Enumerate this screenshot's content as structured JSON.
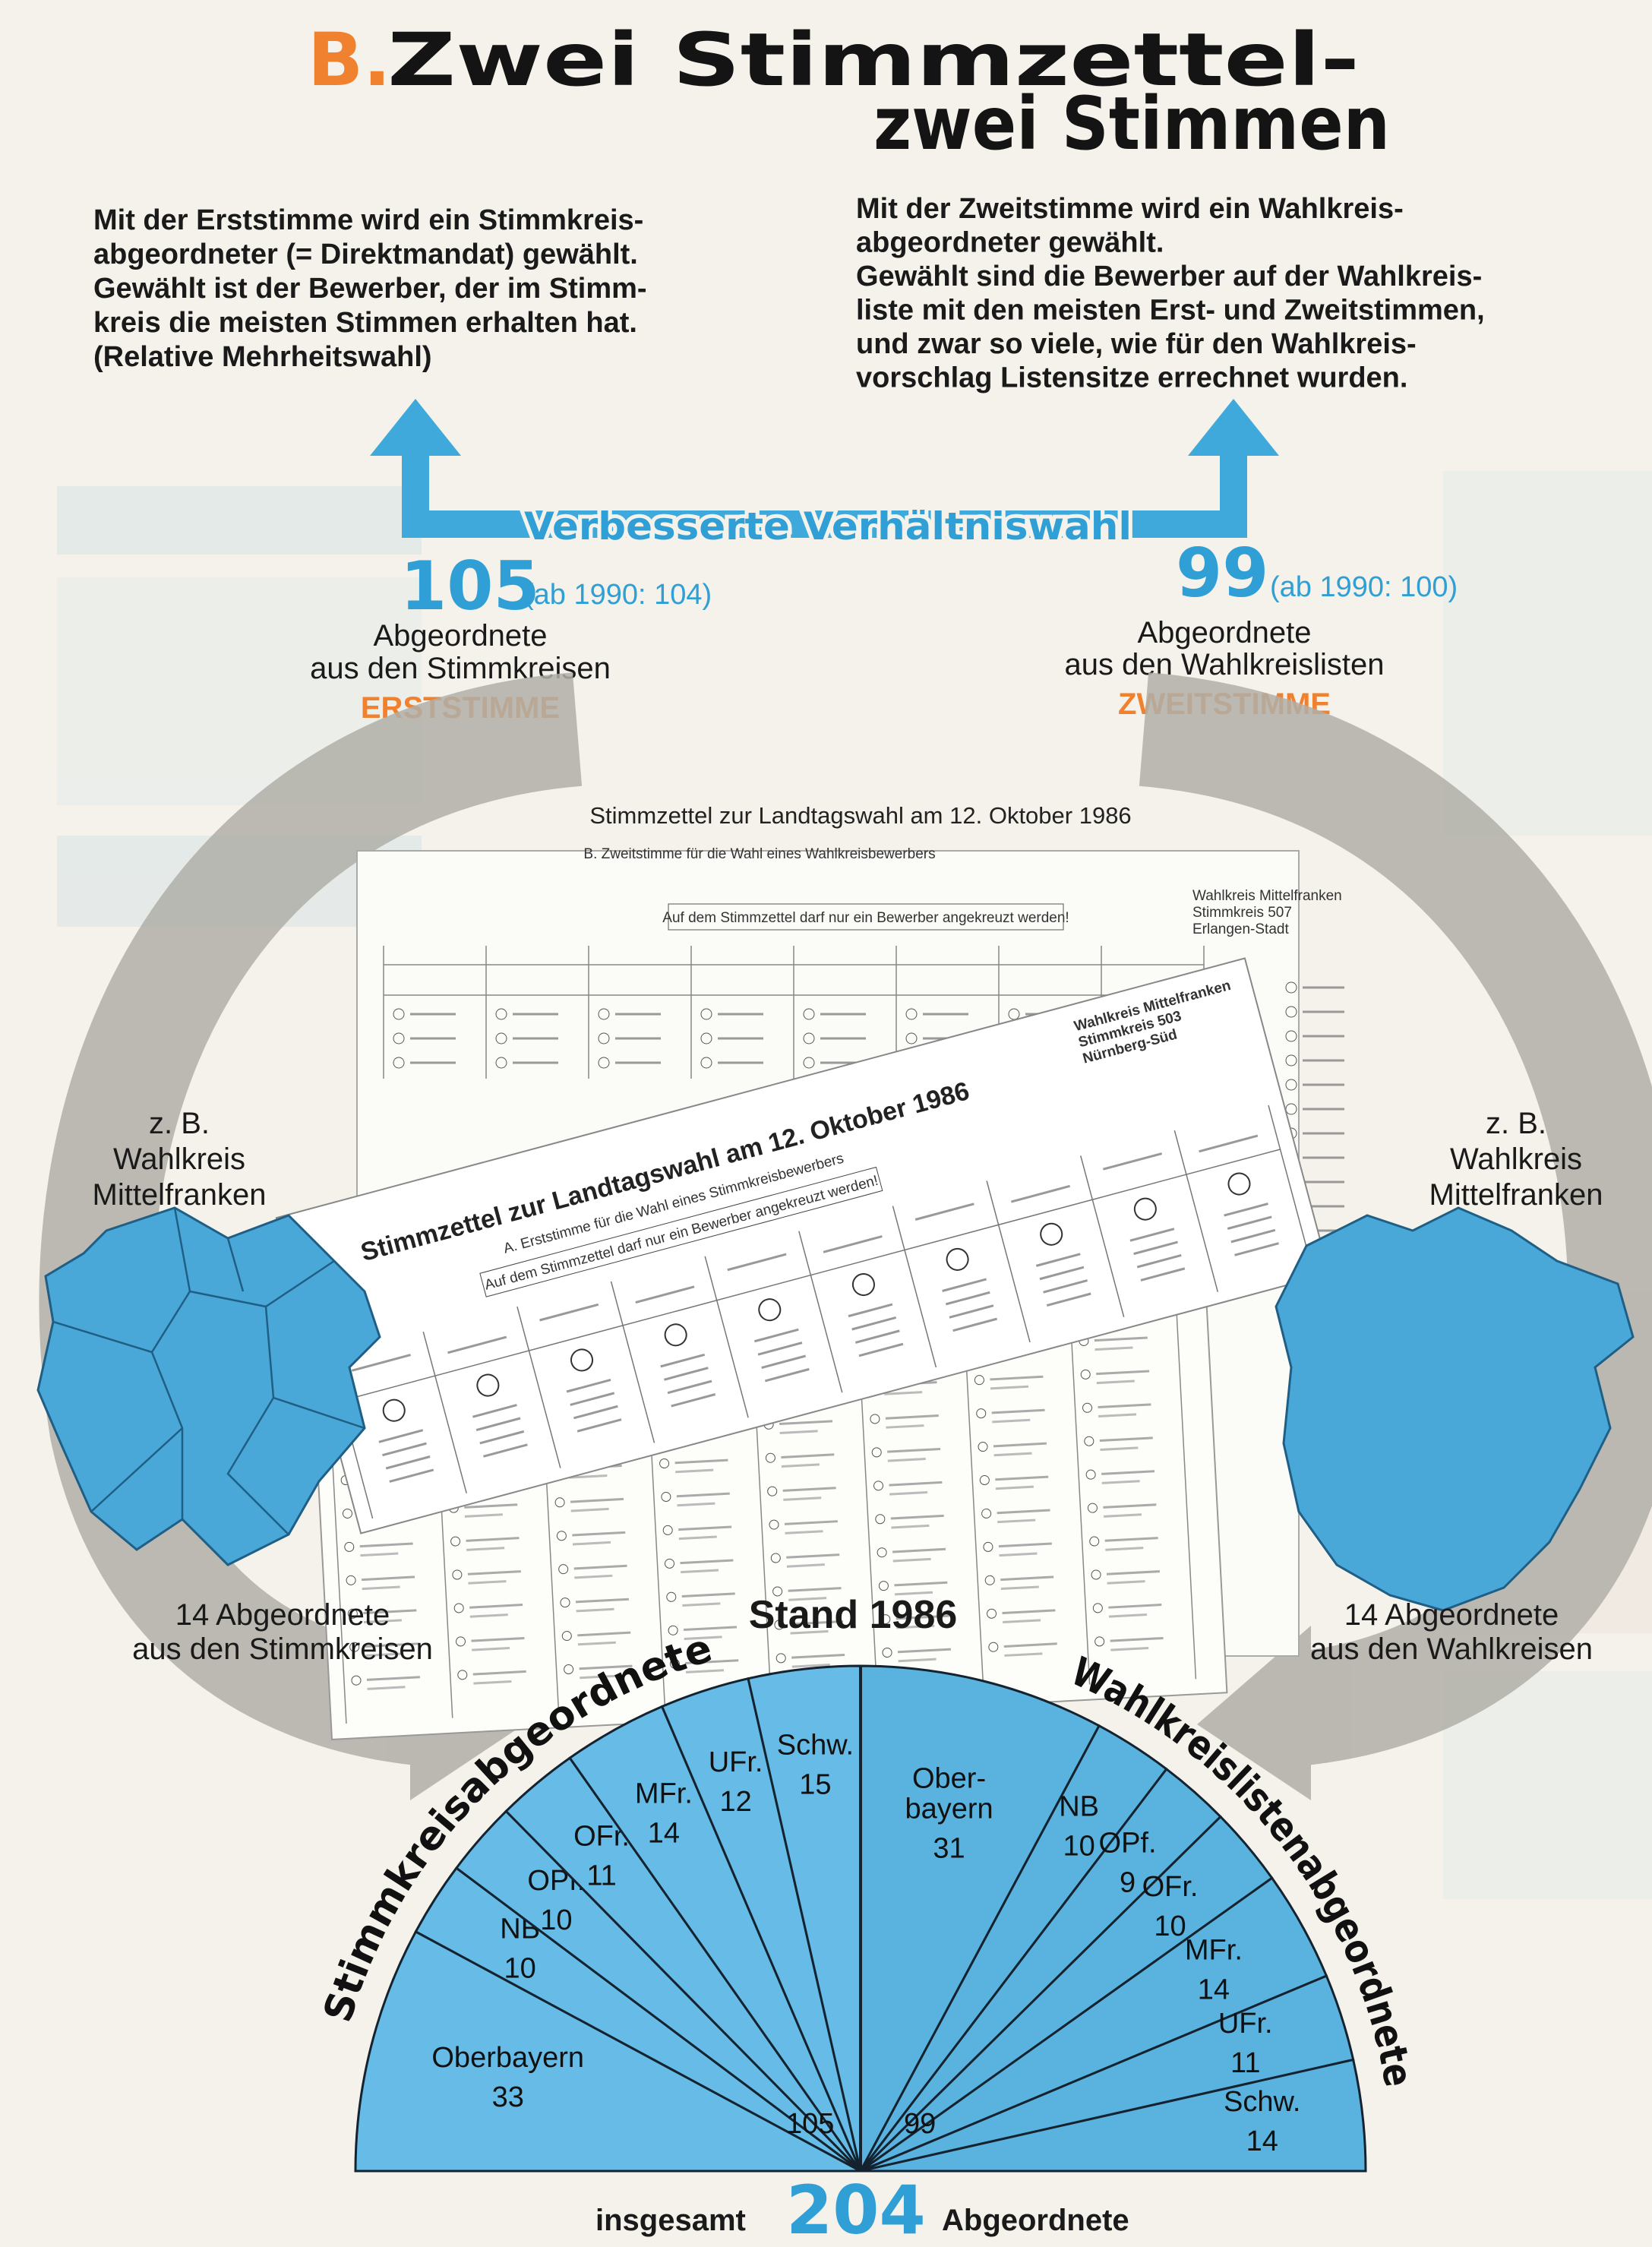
{
  "title": {
    "letter": "B.",
    "line1": "Zwei Stimmzettel-",
    "line2": "zwei Stimmen"
  },
  "erststimme_text": [
    "Mit der Erststimme wird ein Stimmkreis-",
    "abgeordneter (= Direktmandat) gewählt.",
    "Gewählt ist der Bewerber, der im Stimm-",
    "kreis die meisten Stimmen erhalten hat.",
    "(Relative Mehrheitswahl)"
  ],
  "zweitstimme_text": [
    "Mit der Zweitstimme wird ein Wahlkreis-",
    "abgeordneter gewählt.",
    "Gewählt sind die Bewerber auf der Wahlkreis-",
    "liste mit den meisten Erst- und Zweitstimmen,",
    "und zwar so viele, wie für den Wahlkreis-",
    "vorschlag Listensitze errechnet wurden."
  ],
  "system": "Verbesserte Verhältniswahl",
  "left_count": {
    "number": 105,
    "note": "(ab 1990: 104)",
    "lines": [
      "Abgeordnete",
      "aus den Stimmkreisen"
    ],
    "vote": "ERSTSTIMME"
  },
  "right_count": {
    "number": 99,
    "note": "(ab 1990: 100)",
    "lines": [
      "Abgeordnete",
      "aus den Wahlkreislisten"
    ],
    "vote": "ZWEITSTIMME"
  },
  "ballot": {
    "heading": "Stimmzettel zur Landtagswahl am 12. Oktober 1986",
    "back_section": "B. Zweitstimme für die Wahl eines Wahlkreisbewerbers",
    "back_notice": "Auf dem Stimmzettel darf nur ein Bewerber angekreuzt werden!",
    "back_district": [
      "Wahlkreis Mittelfranken",
      "Stimmkreis 507",
      "Erlangen-Stadt"
    ],
    "front_title": "Stimmzettel zur Landtagswahl am 12. Oktober 1986",
    "front_section": "A. Erststimme für die Wahl eines Stimmkreisbewerbers",
    "front_notice": "Auf dem Stimmzettel darf nur ein Bewerber angekreuzt werden!",
    "front_district": [
      "Wahlkreis Mittelfranken",
      "Stimmkreis 503",
      "Nürnberg-Süd"
    ]
  },
  "left_map": {
    "label": [
      "z. B.",
      "Wahlkreis",
      "Mittelfranken"
    ],
    "caption": [
      "14 Abgeordnete",
      "aus den Stimmkreisen"
    ]
  },
  "right_map": {
    "label": [
      "z. B.",
      "Wahlkreis",
      "Mittelfranken"
    ],
    "caption": [
      "14 Abgeordnete",
      "aus den Wahlkreisen"
    ]
  },
  "seat_chart": {
    "title": "Stand 1986",
    "left_label": "Stimmkreisabgeordnete",
    "right_label": "Wahlkreislistenabgeordnete",
    "left": [
      {
        "name": [
          "Oberbayern"
        ],
        "seats": 33
      },
      {
        "name": [
          "NB"
        ],
        "seats": 10
      },
      {
        "name": [
          "OPf."
        ],
        "seats": 10
      },
      {
        "name": [
          "OFr."
        ],
        "seats": 11
      },
      {
        "name": [
          "MFr."
        ],
        "seats": 14
      },
      {
        "name": [
          "UFr."
        ],
        "seats": 12
      },
      {
        "name": [
          "Schw."
        ],
        "seats": 15
      }
    ],
    "right": [
      {
        "name": [
          "Ober-",
          "bayern"
        ],
        "seats": 31
      },
      {
        "name": [
          "NB"
        ],
        "seats": 10
      },
      {
        "name": [
          "OPf."
        ],
        "seats": 9
      },
      {
        "name": [
          "OFr."
        ],
        "seats": 10
      },
      {
        "name": [
          "MFr."
        ],
        "seats": 14
      },
      {
        "name": [
          "UFr."
        ],
        "seats": 11
      },
      {
        "name": [
          "Schw."
        ],
        "seats": 14
      }
    ]
  },
  "footer": {
    "prefix": "insgesamt",
    "total": 204,
    "suffix": "Abgeordnete"
  }
}
